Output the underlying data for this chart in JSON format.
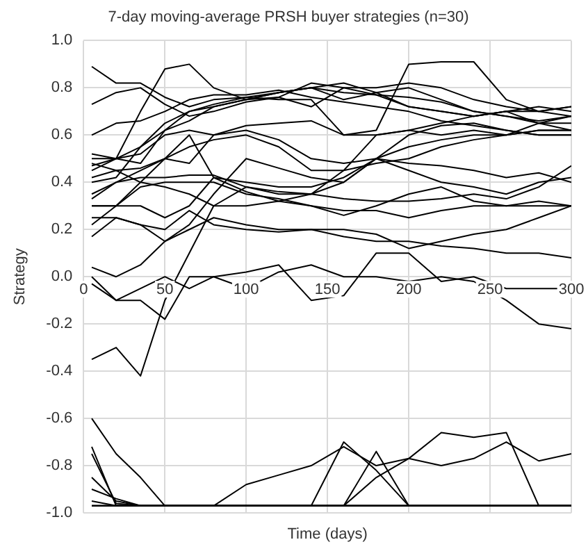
{
  "chart_data": {
    "type": "line",
    "title": "7-day moving-average PRSH buyer strategies (n=30)",
    "xlabel": "Time (days)",
    "ylabel": "Strategy",
    "marker": "none",
    "grid": true,
    "legend": false,
    "x": [
      5,
      20,
      35,
      50,
      65,
      80,
      100,
      120,
      140,
      160,
      180,
      200,
      220,
      240,
      260,
      280,
      300
    ],
    "xlim": [
      0,
      300
    ],
    "xticks": [
      0,
      50,
      100,
      150,
      200,
      250,
      300
    ],
    "ylim": [
      -1,
      1
    ],
    "yticks": [
      {
        "value": -1,
        "label": "-1.0"
      },
      {
        "value": -0.8,
        "label": "-0.8"
      },
      {
        "value": -0.6,
        "label": "-0.6"
      },
      {
        "value": -0.4,
        "label": "-0.4"
      },
      {
        "value": -0.2,
        "label": "-0.2"
      },
      {
        "value": 0,
        "label": "0.0"
      },
      {
        "value": 0.2,
        "label": "0.2"
      },
      {
        "value": 0.4,
        "label": "0.4"
      },
      {
        "value": 0.6,
        "label": "0.6"
      },
      {
        "value": 0.8,
        "label": "0.8"
      },
      {
        "value": 1,
        "label": "1.0"
      }
    ],
    "series": [
      {
        "color": "#000000",
        "values": [
          0.89,
          0.82,
          0.82,
          0.76,
          0.72,
          0.75,
          0.76,
          0.78,
          0.8,
          0.78,
          0.77,
          0.72,
          0.7,
          0.68,
          0.7,
          0.72,
          0.7
        ]
      },
      {
        "color": "#000000",
        "values": [
          0.73,
          0.78,
          0.8,
          0.73,
          0.68,
          0.7,
          0.74,
          0.76,
          0.82,
          0.8,
          0.8,
          0.82,
          0.8,
          0.75,
          0.72,
          0.7,
          0.72
        ]
      },
      {
        "color": "#000000",
        "values": [
          0.6,
          0.65,
          0.66,
          0.7,
          0.75,
          0.77,
          0.77,
          0.79,
          0.76,
          0.74,
          0.72,
          0.7,
          0.66,
          0.64,
          0.62,
          0.6,
          0.6
        ]
      },
      {
        "color": "#000000",
        "values": [
          0.45,
          0.5,
          0.7,
          0.88,
          0.9,
          0.8,
          0.75,
          0.76,
          0.72,
          0.8,
          0.77,
          0.76,
          0.74,
          0.7,
          0.68,
          0.66,
          0.68
        ]
      },
      {
        "color": "#000000",
        "values": [
          0.52,
          0.5,
          0.52,
          0.6,
          0.62,
          0.6,
          0.64,
          0.65,
          0.66,
          0.6,
          0.62,
          0.9,
          0.91,
          0.91,
          0.75,
          0.7,
          0.68
        ]
      },
      {
        "color": "#000000",
        "values": [
          0.48,
          0.45,
          0.46,
          0.5,
          0.6,
          0.42,
          0.4,
          0.38,
          0.38,
          0.42,
          0.5,
          0.48,
          0.47,
          0.45,
          0.42,
          0.44,
          0.4
        ]
      },
      {
        "color": "#000000",
        "values": [
          0.35,
          0.4,
          0.42,
          0.42,
          0.43,
          0.43,
          0.38,
          0.36,
          0.35,
          0.33,
          0.32,
          0.32,
          0.33,
          0.35,
          0.33,
          0.38,
          0.47
        ]
      },
      {
        "color": "#000000",
        "values": [
          0.3,
          0.3,
          0.3,
          0.25,
          0.3,
          0.42,
          0.36,
          0.32,
          0.3,
          0.28,
          0.28,
          0.25,
          0.28,
          0.3,
          0.3,
          0.32,
          0.3
        ]
      },
      {
        "color": "#000000",
        "values": [
          0.25,
          0.25,
          0.22,
          0.15,
          0.2,
          0.25,
          0.22,
          0.2,
          0.2,
          0.2,
          0.18,
          0.12,
          0.15,
          0.18,
          0.2,
          0.25,
          0.3
        ]
      },
      {
        "color": "#000000",
        "values": [
          0.17,
          0.25,
          0.22,
          0.2,
          0.28,
          0.22,
          0.2,
          0.19,
          0.2,
          0.17,
          0.15,
          0.15,
          0.13,
          0.12,
          0.1,
          0.1,
          0.08
        ]
      },
      {
        "color": "#000000",
        "values": [
          0.04,
          0,
          0.05,
          0.15,
          0.22,
          0.35,
          0.5,
          0.46,
          0.42,
          0.4,
          0.5,
          0.6,
          0.64,
          0.65,
          0.62,
          0.6,
          0.6
        ]
      },
      {
        "color": "#000000",
        "values": [
          -0.35,
          -0.3,
          -0.42,
          -0.1,
          0.1,
          0.3,
          0.38,
          0.35,
          0.35,
          0.4,
          0.5,
          0.55,
          0.58,
          0.6,
          0.6,
          0.62,
          0.62
        ]
      },
      {
        "color": "#000000",
        "values": [
          -0.03,
          -0.1,
          -0.1,
          -0.18,
          0,
          0,
          -0.05,
          0.02,
          0.05,
          0,
          0,
          -0.02,
          0,
          -0.02,
          -0.1,
          -0.2,
          -0.22
        ]
      },
      {
        "color": "#000000",
        "values": [
          -0.6,
          -0.75,
          -0.85,
          -0.97,
          -0.97,
          -0.97,
          -0.88,
          -0.84,
          -0.8,
          -0.72,
          -0.8,
          -0.77,
          -0.66,
          -0.68,
          -0.66,
          -0.97,
          -0.97
        ]
      },
      {
        "color": "#000000",
        "values": [
          -0.97,
          -0.97,
          -0.97,
          -0.97,
          -0.97,
          -0.97,
          -0.97,
          -0.97,
          -0.97,
          -0.97,
          -0.85,
          -0.77,
          -0.8,
          -0.77,
          -0.7,
          -0.78,
          -0.75
        ]
      },
      {
        "color": "#000000",
        "values": [
          -0.97,
          -0.97,
          -0.97,
          -0.97,
          -0.97,
          -0.97,
          -0.97,
          -0.97,
          -0.97,
          -0.7,
          -0.82,
          -0.97,
          -0.97,
          -0.97,
          -0.97,
          -0.97,
          -0.97
        ]
      },
      {
        "color": "#000000",
        "values": [
          -0.97,
          -0.97,
          -0.97,
          -0.97,
          -0.97,
          -0.97,
          -0.97,
          -0.97,
          -0.97,
          -0.97,
          -0.74,
          -0.97,
          -0.97,
          -0.97,
          -0.97,
          -0.97,
          -0.97
        ]
      },
      {
        "color": "#000000",
        "values": [
          -0.72,
          -0.97,
          -0.97,
          -0.97,
          -0.97,
          -0.97,
          -0.97,
          -0.97,
          -0.97,
          -0.97,
          -0.97,
          -0.97,
          -0.97,
          -0.97,
          -0.97,
          -0.97,
          -0.97
        ]
      },
      {
        "color": "#000000",
        "values": [
          -0.75,
          -0.96,
          -0.97,
          -0.97,
          -0.97,
          -0.97,
          -0.97,
          -0.97,
          -0.97,
          -0.97,
          -0.97,
          -0.97,
          -0.97,
          -0.97,
          -0.97,
          -0.97,
          -0.97
        ]
      },
      {
        "color": "#000000",
        "values": [
          -0.85,
          -0.95,
          -0.97,
          -0.97,
          -0.97,
          -0.97,
          -0.97,
          -0.97,
          -0.97,
          -0.97,
          -0.97,
          -0.97,
          -0.97,
          -0.97,
          -0.97,
          -0.97,
          -0.97
        ]
      },
      {
        "color": "#000000",
        "values": [
          -0.9,
          -0.94,
          -0.97,
          -0.97,
          -0.97,
          -0.97,
          -0.97,
          -0.97,
          -0.97,
          -0.97,
          -0.97,
          -0.97,
          -0.97,
          -0.97,
          -0.97,
          -0.97,
          -0.97
        ]
      },
      {
        "color": "#000000",
        "values": [
          -0.95,
          -0.97,
          -0.97,
          -0.97,
          -0.97,
          -0.97,
          -0.97,
          -0.97,
          -0.97,
          -0.97,
          -0.97,
          -0.97,
          -0.97,
          -0.97,
          -0.97,
          -0.97,
          -0.97
        ]
      },
      {
        "color": "#000000",
        "values": [
          0.5,
          0.5,
          0.48,
          0.62,
          0.7,
          0.72,
          0.75,
          0.78,
          0.8,
          0.75,
          0.78,
          0.8,
          0.75,
          0.7,
          0.68,
          0.65,
          0.65
        ]
      },
      {
        "color": "#000000",
        "values": [
          0.42,
          0.45,
          0.4,
          0.38,
          0.35,
          0.3,
          0.3,
          0.32,
          0.35,
          0.45,
          0.6,
          0.62,
          0.65,
          0.68,
          0.7,
          0.65,
          0.62
        ]
      },
      {
        "color": "#000000",
        "values": [
          0.33,
          0.4,
          0.45,
          0.5,
          0.48,
          0.6,
          0.62,
          0.58,
          0.5,
          0.48,
          0.5,
          0.45,
          0.4,
          0.38,
          0.35,
          0.4,
          0.42
        ]
      },
      {
        "color": "#000000",
        "values": [
          0,
          -0.1,
          -0.05,
          0,
          -0.05,
          0,
          0.02,
          0.05,
          -0.1,
          -0.08,
          0.1,
          0.1,
          -0.02,
          0,
          -0.05,
          -0.05,
          -0.05
        ]
      },
      {
        "color": "#000000",
        "values": [
          0.47,
          0.5,
          0.55,
          0.62,
          0.66,
          0.72,
          0.75,
          0.78,
          0.8,
          0.82,
          0.78,
          0.72,
          0.7,
          0.68,
          0.7,
          0.7,
          0.72
        ]
      },
      {
        "color": "#000000",
        "values": [
          0.3,
          0.3,
          0.4,
          0.5,
          0.55,
          0.58,
          0.6,
          0.55,
          0.45,
          0.45,
          0.48,
          0.5,
          0.55,
          0.58,
          0.6,
          0.65,
          0.68
        ]
      },
      {
        "color": "#000000",
        "values": [
          0.4,
          0.42,
          0.55,
          0.65,
          0.7,
          0.73,
          0.76,
          0.75,
          0.75,
          0.6,
          0.6,
          0.62,
          0.6,
          0.62,
          0.6,
          0.62,
          0.62
        ]
      },
      {
        "color": "#000000",
        "values": [
          0.22,
          0.3,
          0.38,
          0.4,
          0.4,
          0.4,
          0.35,
          0.33,
          0.3,
          0.26,
          0.3,
          0.35,
          0.38,
          0.32,
          0.3,
          0.3,
          0.3
        ]
      }
    ]
  }
}
